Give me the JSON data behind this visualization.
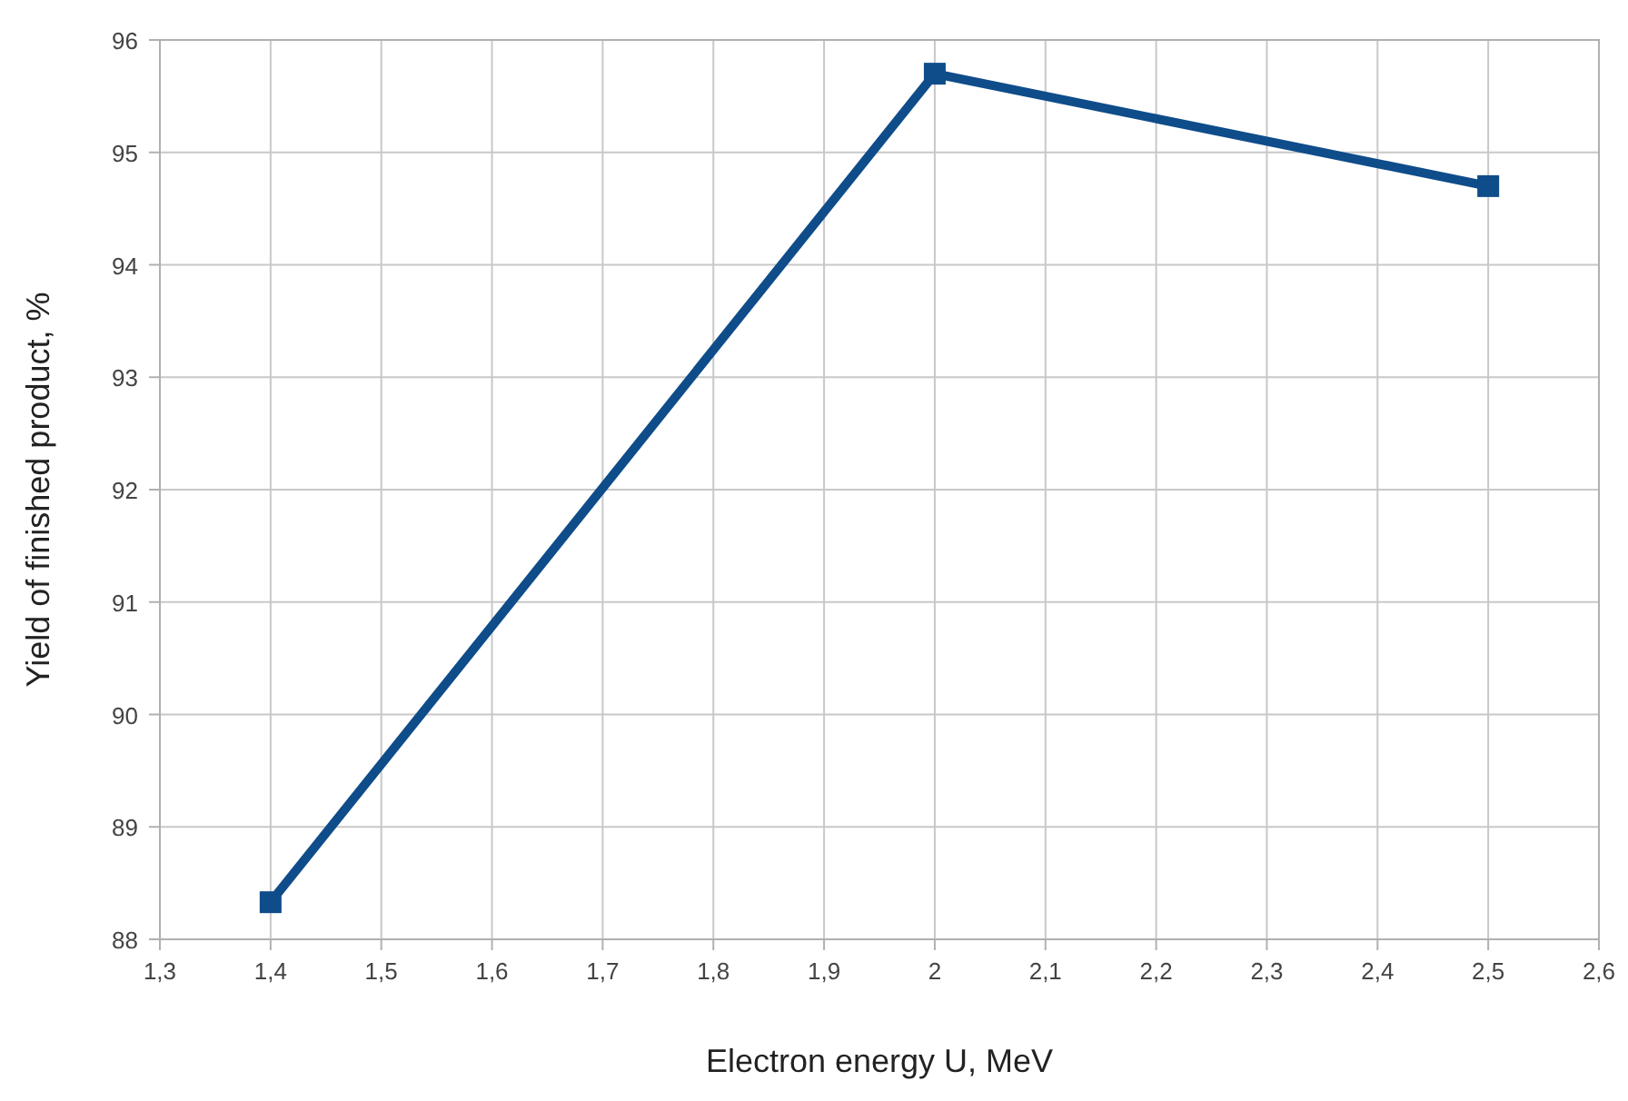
{
  "chart_data": {
    "type": "line",
    "xlabel": "Electron energy  U, MeV",
    "ylabel": "Yield of finished product, %",
    "x": [
      1.4,
      2,
      2.5
    ],
    "series": [
      {
        "color": "#0f4c8a",
        "values": [
          88.33,
          95.7,
          94.7
        ]
      }
    ],
    "xlim": [
      1.3,
      2.6
    ],
    "xticks": [
      {
        "value": 1.3,
        "label": "1,3"
      },
      {
        "value": 1.4,
        "label": "1,4"
      },
      {
        "value": 1.5,
        "label": "1,5"
      },
      {
        "value": 1.6,
        "label": "1,6"
      },
      {
        "value": 1.7,
        "label": "1,7"
      },
      {
        "value": 1.8,
        "label": "1,8"
      },
      {
        "value": 1.9,
        "label": "1,9"
      },
      2,
      {
        "value": 2.1,
        "label": "2,1"
      },
      {
        "value": 2.2,
        "label": "2,2"
      },
      {
        "value": 2.3,
        "label": "2,3"
      },
      {
        "value": 2.4,
        "label": "2,4"
      },
      {
        "value": 2.5,
        "label": "2,5"
      },
      {
        "value": 2.6,
        "label": "2,6"
      }
    ],
    "ylim": [
      88,
      96
    ],
    "yticks": [
      88,
      89,
      90,
      91,
      92,
      93,
      94,
      95,
      96
    ],
    "grid": true,
    "marker": "square",
    "line_style": "solid"
  }
}
